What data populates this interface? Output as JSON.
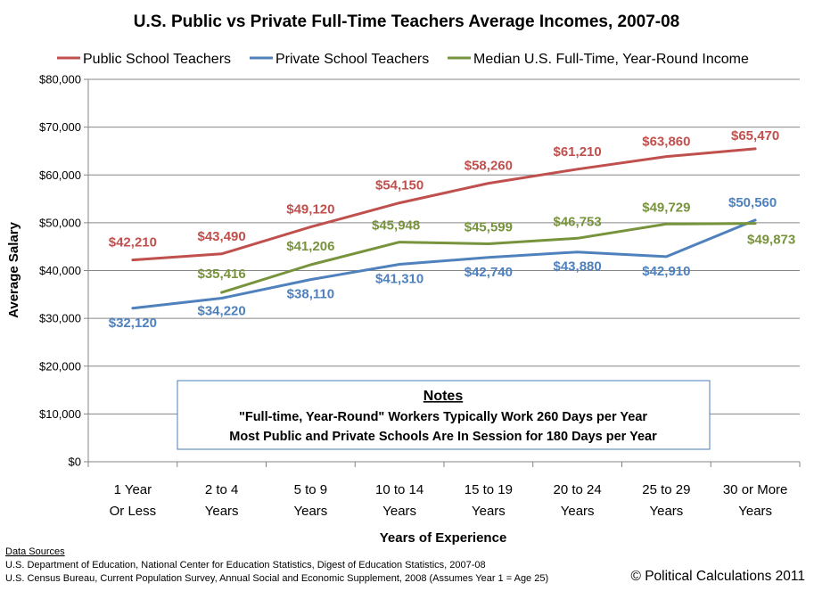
{
  "chart_data": {
    "type": "line",
    "title": "U.S. Public vs Private Full-Time Teachers Average Incomes, 2007-08",
    "xlabel": "Years of Experience",
    "ylabel": "Average Salary",
    "ylim": [
      0,
      80000
    ],
    "yticks": [
      "$0",
      "$10,000",
      "$20,000",
      "$30,000",
      "$40,000",
      "$50,000",
      "$60,000",
      "$70,000",
      "$80,000"
    ],
    "ytick_values": [
      0,
      10000,
      20000,
      30000,
      40000,
      50000,
      60000,
      70000,
      80000
    ],
    "grid": "horizontal",
    "legend_position": "top",
    "categories": [
      [
        "1 Year",
        "Or Less"
      ],
      [
        "2 to 4",
        "Years"
      ],
      [
        "5 to 9",
        "Years"
      ],
      [
        "10 to 14",
        "Years"
      ],
      [
        "15 to 19",
        "Years"
      ],
      [
        "20 to 24",
        "Years"
      ],
      [
        "25 to 29",
        "Years"
      ],
      [
        "30 or More",
        "Years"
      ]
    ],
    "series": [
      {
        "name": "Public School Teachers",
        "color": "#c0504d",
        "values": [
          42210,
          43490,
          49120,
          54150,
          58260,
          61210,
          63860,
          65470
        ],
        "labels": [
          "$42,210",
          "$43,490",
          "$49,120",
          "$54,150",
          "$58,260",
          "$61,210",
          "$63,860",
          "$65,470"
        ]
      },
      {
        "name": "Private School Teachers",
        "color": "#4f81bd",
        "values": [
          32120,
          34220,
          38110,
          41310,
          42740,
          43880,
          42910,
          50560
        ],
        "labels": [
          "$32,120",
          "$34,220",
          "$38,110",
          "$41,310",
          "$42,740",
          "$43,880",
          "$42,910",
          "$50,560"
        ]
      },
      {
        "name": "Median U.S. Full-Time, Year-Round Income",
        "color": "#77933c",
        "values": [
          null,
          35416,
          41206,
          45948,
          45599,
          46753,
          49729,
          49873
        ],
        "labels": [
          null,
          "$35,416",
          "$41,206",
          "$45,948",
          "$45,599",
          "$46,753",
          "$49,729",
          "$49,873"
        ]
      }
    ]
  },
  "notes": {
    "heading": "Notes",
    "line1": "\"Full-time, Year-Round\" Workers Typically Work 260 Days per Year",
    "line2": "Most Public and Private Schools Are In Session for 180 Days per Year"
  },
  "sources": {
    "heading": "Data Sources",
    "line1": "U.S. Department of Education, National Center for Education Statistics, Digest of Education Statistics,  2007-08",
    "line2": "U.S. Census Bureau, Current Population Survey, Annual Social and Economic Supplement, 2008 (Assumes Year 1 = Age 25)"
  },
  "copyright": "© Political Calculations 2011"
}
